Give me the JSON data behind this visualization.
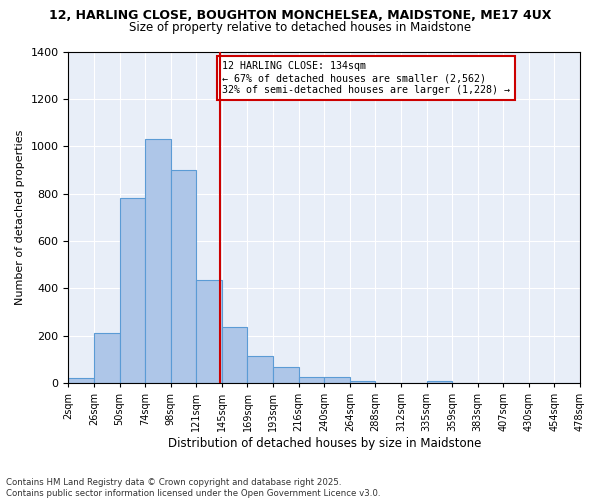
{
  "title_line1": "12, HARLING CLOSE, BOUGHTON MONCHELSEA, MAIDSTONE, ME17 4UX",
  "title_line2": "Size of property relative to detached houses in Maidstone",
  "xlabel": "Distribution of detached houses by size in Maidstone",
  "ylabel": "Number of detached properties",
  "bin_labels": [
    "2sqm",
    "26sqm",
    "50sqm",
    "74sqm",
    "98sqm",
    "121sqm",
    "145sqm",
    "169sqm",
    "193sqm",
    "216sqm",
    "240sqm",
    "264sqm",
    "288sqm",
    "312sqm",
    "335sqm",
    "359sqm",
    "383sqm",
    "407sqm",
    "430sqm",
    "454sqm",
    "478sqm"
  ],
  "bar_heights": [
    20,
    210,
    780,
    1030,
    900,
    435,
    235,
    115,
    70,
    25,
    25,
    10,
    0,
    0,
    10,
    0,
    0,
    0,
    0,
    0
  ],
  "bar_color": "#aec6e8",
  "bar_edge_color": "#5b9bd5",
  "red_line_x": 5.42,
  "red_line_color": "#cc0000",
  "annotation_title": "12 HARLING CLOSE: 134sqm",
  "annotation_line1": "← 67% of detached houses are smaller (2,562)",
  "annotation_line2": "32% of semi-detached houses are larger (1,228) →",
  "annotation_box_color": "#cc0000",
  "ylim": [
    0,
    1400
  ],
  "yticks": [
    0,
    200,
    400,
    600,
    800,
    1000,
    1200,
    1400
  ],
  "background_color": "#e8eef8",
  "grid_color": "#ffffff",
  "footer_line1": "Contains HM Land Registry data © Crown copyright and database right 2025.",
  "footer_line2": "Contains public sector information licensed under the Open Government Licence v3.0."
}
